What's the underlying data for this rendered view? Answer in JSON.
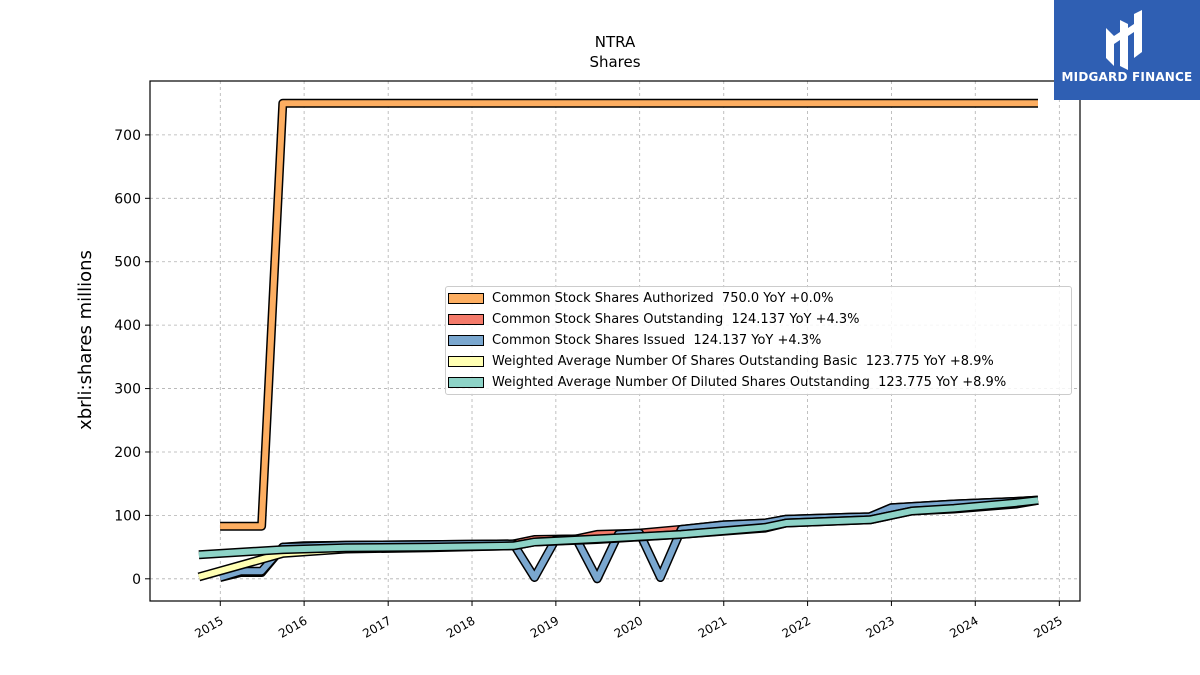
{
  "brand": {
    "name": "MIDGARD FINANCE",
    "logo_bg": "#2f5fb3"
  },
  "chart_data": {
    "type": "line",
    "title": "NTRA",
    "subtitle": "Shares",
    "xlabel": "",
    "ylabel": "xbrli:shares millions",
    "xlim": [
      "2014-03-01",
      "2025-04-01"
    ],
    "ylim": [
      -35,
      785
    ],
    "yticks": [
      0,
      100,
      200,
      300,
      400,
      500,
      600,
      700
    ],
    "xticks": [
      "2015",
      "2016",
      "2017",
      "2018",
      "2019",
      "2020",
      "2021",
      "2022",
      "2023",
      "2024",
      "2025"
    ],
    "grid": true,
    "legend_position": "center-right",
    "series": [
      {
        "name": "Common Stock Shares Authorized",
        "legend": "Common Stock Shares Authorized  750.0 YoY +0.0%",
        "color": "#fdae61",
        "points": [
          [
            "2014-12-31",
            83
          ],
          [
            "2015-06-30",
            83
          ],
          [
            "2015-09-30",
            750
          ],
          [
            "2024-09-30",
            750
          ]
        ]
      },
      {
        "name": "Common Stock Shares Outstanding",
        "legend": "Common Stock Shares Outstanding  124.137 YoY +4.3%",
        "color": "#f47a6a",
        "points": [
          [
            "2014-12-31",
            2
          ],
          [
            "2015-03-31",
            10
          ],
          [
            "2015-06-30",
            10
          ],
          [
            "2015-09-30",
            50
          ],
          [
            "2015-12-31",
            52
          ],
          [
            "2016-06-30",
            53
          ],
          [
            "2017-06-30",
            54
          ],
          [
            "2018-06-30",
            55
          ],
          [
            "2018-09-30",
            62
          ],
          [
            "2019-03-31",
            63
          ],
          [
            "2019-06-30",
            70
          ],
          [
            "2019-12-31",
            72
          ],
          [
            "2020-06-30",
            78
          ],
          [
            "2020-12-31",
            85
          ],
          [
            "2021-06-30",
            88
          ],
          [
            "2021-09-30",
            94
          ],
          [
            "2022-06-30",
            97
          ],
          [
            "2022-09-30",
            98
          ],
          [
            "2022-12-31",
            112
          ],
          [
            "2023-06-30",
            116
          ],
          [
            "2023-09-30",
            118
          ],
          [
            "2024-06-30",
            122
          ],
          [
            "2024-09-30",
            124.137
          ]
        ]
      },
      {
        "name": "Common Stock Shares Issued",
        "legend": "Common Stock Shares Issued  124.137 YoY +4.3%",
        "color": "#7aa7cf",
        "points": [
          [
            "2014-12-31",
            2
          ],
          [
            "2015-03-31",
            12
          ],
          [
            "2015-06-30",
            12
          ],
          [
            "2015-09-30",
            50
          ],
          [
            "2016-06-30",
            53
          ],
          [
            "2017-06-30",
            54
          ],
          [
            "2018-06-30",
            55
          ],
          [
            "2018-09-30",
            2
          ],
          [
            "2018-12-31",
            62
          ],
          [
            "2019-03-31",
            63
          ],
          [
            "2019-06-30",
            0
          ],
          [
            "2019-09-30",
            70
          ],
          [
            "2019-12-31",
            72
          ],
          [
            "2020-03-31",
            2
          ],
          [
            "2020-06-30",
            78
          ],
          [
            "2020-12-31",
            85
          ],
          [
            "2021-06-30",
            88
          ],
          [
            "2021-09-30",
            94
          ],
          [
            "2022-06-30",
            97
          ],
          [
            "2022-09-30",
            98
          ],
          [
            "2022-12-31",
            112
          ],
          [
            "2023-06-30",
            116
          ],
          [
            "2023-09-30",
            118
          ],
          [
            "2024-06-30",
            122
          ],
          [
            "2024-09-30",
            124.137
          ]
        ]
      },
      {
        "name": "Weighted Average Number Of Shares Outstanding Basic",
        "legend": "Weighted Average Number Of Shares Outstanding Basic  123.775 YoY +8.9%",
        "color": "#ffffb3",
        "points": [
          [
            "2014-09-30",
            3
          ],
          [
            "2015-09-30",
            40
          ],
          [
            "2016-06-30",
            47
          ],
          [
            "2017-06-30",
            49
          ],
          [
            "2018-06-30",
            52
          ],
          [
            "2018-09-30",
            58
          ],
          [
            "2019-06-30",
            62
          ],
          [
            "2020-06-30",
            70
          ],
          [
            "2021-06-30",
            80
          ],
          [
            "2021-09-30",
            88
          ],
          [
            "2022-09-30",
            93
          ],
          [
            "2023-03-31",
            107
          ],
          [
            "2023-09-30",
            110
          ],
          [
            "2024-06-30",
            118
          ],
          [
            "2024-09-30",
            123.775
          ]
        ]
      },
      {
        "name": "Weighted Average Number Of Diluted Shares Outstanding",
        "legend": "Weighted Average Number Of Diluted Shares Outstanding  123.775 YoY +8.9%",
        "color": "#8dd3c7",
        "points": [
          [
            "2014-09-30",
            38
          ],
          [
            "2015-09-30",
            46
          ],
          [
            "2016-06-30",
            49
          ],
          [
            "2017-06-30",
            50
          ],
          [
            "2018-06-30",
            52
          ],
          [
            "2018-09-30",
            58
          ],
          [
            "2019-06-30",
            63
          ],
          [
            "2020-06-30",
            70
          ],
          [
            "2021-06-30",
            81
          ],
          [
            "2021-09-30",
            88
          ],
          [
            "2022-09-30",
            93
          ],
          [
            "2023-03-31",
            107
          ],
          [
            "2023-09-30",
            111
          ],
          [
            "2024-06-30",
            120
          ],
          [
            "2024-09-30",
            123.775
          ]
        ]
      }
    ]
  }
}
